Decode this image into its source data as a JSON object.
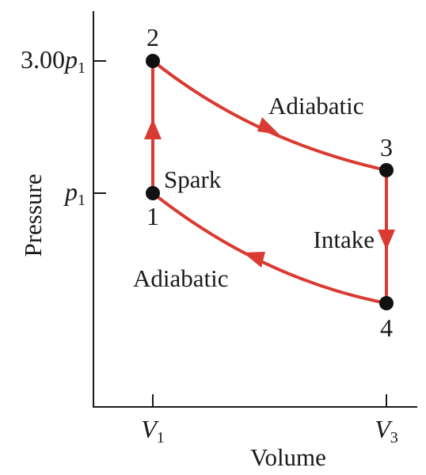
{
  "axes": {
    "x_label": "Volume",
    "y_label": "Pressure",
    "x_ticks": [
      {
        "main": "V",
        "sub": "1"
      },
      {
        "main": "V",
        "sub": "3"
      }
    ],
    "y_ticks": [
      {
        "coef": "3.00",
        "main": "p",
        "sub": "1"
      },
      {
        "coef": "",
        "main": "p",
        "sub": "1"
      }
    ]
  },
  "points": [
    {
      "id": "1",
      "label": "1"
    },
    {
      "id": "2",
      "label": "2"
    },
    {
      "id": "3",
      "label": "3"
    },
    {
      "id": "4",
      "label": "4"
    }
  ],
  "processes": {
    "spark": "Spark",
    "adiabatic_expansion": "Adiabatic",
    "intake": "Intake",
    "adiabatic_compression": "Adiabatic"
  },
  "colors": {
    "cycle": "#d93a32",
    "points": "#111111",
    "axes": "#1a1a1a"
  }
}
